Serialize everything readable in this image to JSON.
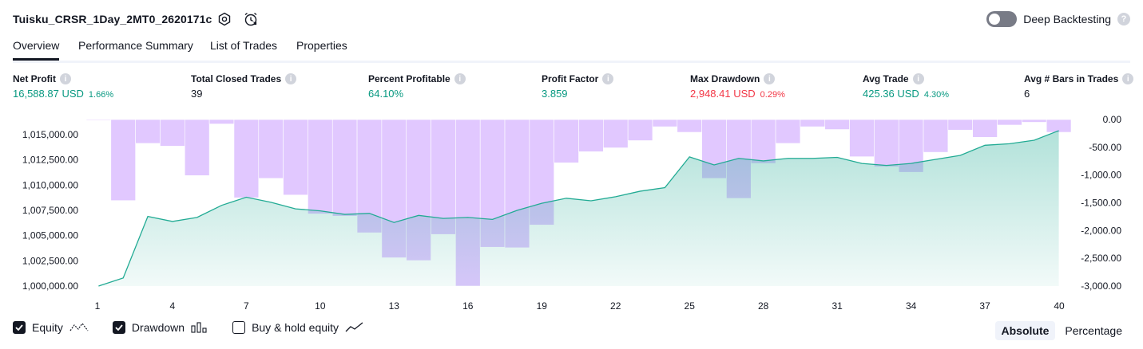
{
  "header": {
    "title": "Tuisku_CRSR_1Day_2MT0_2620171c",
    "deep_backtesting_label": "Deep Backtesting",
    "deep_backtesting_enabled": false
  },
  "tabs": [
    {
      "label": "Overview",
      "active": true
    },
    {
      "label": "Performance Summary"
    },
    {
      "label": "List of Trades"
    },
    {
      "label": "Properties"
    }
  ],
  "metrics": {
    "net_profit": {
      "label": "Net Profit",
      "value": "16,588.87 USD",
      "pct": "1.66%"
    },
    "total_closed_trades": {
      "label": "Total Closed Trades",
      "value": "39"
    },
    "percent_profitable": {
      "label": "Percent Profitable",
      "value": "64.10%"
    },
    "profit_factor": {
      "label": "Profit Factor",
      "value": "3.859"
    },
    "max_drawdown": {
      "label": "Max Drawdown",
      "value": "2,948.41 USD",
      "pct": "0.29%"
    },
    "avg_trade": {
      "label": "Avg Trade",
      "value": "425.36 USD",
      "pct": "4.30%"
    },
    "avg_bars": {
      "label": "Avg # Bars in Trades",
      "value": "6"
    }
  },
  "legend": {
    "equity": {
      "label": "Equity",
      "checked": true
    },
    "drawdown": {
      "label": "Drawdown",
      "checked": true
    },
    "buy_hold": {
      "label": "Buy & hold equity",
      "checked": false
    }
  },
  "scale_mode": {
    "absolute": "Absolute",
    "percentage": "Percentage",
    "selected": "Absolute"
  },
  "colors": {
    "equity_line": "#22ab94",
    "drawdown_bar": "#d5b3ff",
    "positive": "#089981",
    "negative": "#f23645"
  },
  "chart_data": {
    "type": "bar",
    "x": [
      1,
      2,
      3,
      4,
      5,
      6,
      7,
      8,
      9,
      10,
      11,
      12,
      13,
      14,
      15,
      16,
      17,
      18,
      19,
      20,
      21,
      22,
      23,
      24,
      25,
      26,
      27,
      28,
      29,
      30,
      31,
      32,
      33,
      34,
      35,
      36,
      37,
      38,
      39,
      40
    ],
    "x_tick_labels": [
      "1",
      "4",
      "7",
      "10",
      "13",
      "16",
      "19",
      "22",
      "25",
      "28",
      "31",
      "34",
      "37",
      "40"
    ],
    "series": [
      {
        "name": "Equity",
        "axis": "left",
        "values": [
          1000000,
          1000800,
          1006900,
          1006400,
          1006800,
          1008000,
          1008800,
          1008300,
          1007650,
          1007450,
          1007100,
          1007200,
          1006300,
          1007000,
          1006700,
          1006800,
          1006600,
          1007500,
          1008200,
          1008700,
          1008450,
          1008850,
          1009400,
          1009750,
          1012800,
          1012000,
          1012650,
          1012400,
          1012650,
          1012650,
          1012750,
          1012150,
          1011950,
          1012150,
          1012550,
          1012950,
          1013950,
          1014100,
          1014450,
          1015400
        ]
      },
      {
        "name": "Drawdown",
        "axis": "right",
        "values": [
          -10,
          -1460,
          -430,
          -480,
          -1010,
          -80,
          -1410,
          -1060,
          -1360,
          -1700,
          -1740,
          -2040,
          -2490,
          -2540,
          -2070,
          -3000,
          -2300,
          -2310,
          -1900,
          -780,
          -580,
          -510,
          -380,
          -130,
          -230,
          -1060,
          -1420,
          -790,
          -430,
          -130,
          -180,
          -670,
          -850,
          -950,
          -590,
          -190,
          -320,
          -100,
          -50,
          -230
        ]
      }
    ],
    "left_axis": {
      "ticks": [
        "1,000,000.00",
        "1,002,500.00",
        "1,005,000.00",
        "1,007,500.00",
        "1,010,000.00",
        "1,012,500.00",
        "1,015,000.00"
      ],
      "ylim": [
        1000000,
        1016500
      ]
    },
    "right_axis": {
      "ticks": [
        "0.00",
        "-500.00",
        "-1,000.00",
        "-1,500.00",
        "-2,000.00",
        "-2,500.00",
        "-3,000.00"
      ],
      "ylim": [
        -3000,
        0
      ]
    }
  }
}
